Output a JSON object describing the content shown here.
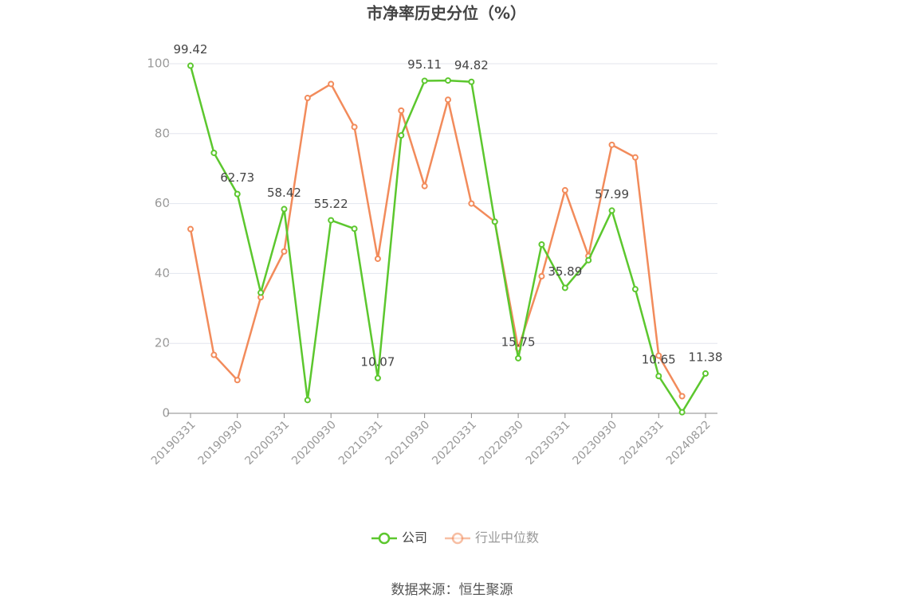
{
  "chart_data": {
    "type": "line",
    "title": "市净率历史分位（%）",
    "categories": [
      "20190331",
      null,
      "20190930",
      null,
      "20200331",
      null,
      "20200930",
      null,
      "20210331",
      null,
      "20210930",
      null,
      "20220331",
      null,
      "20220930",
      null,
      "20230331",
      null,
      "20230930",
      null,
      "20240331",
      null,
      "20240822"
    ],
    "series": [
      {
        "name": "公司",
        "color": "#5cc72e",
        "values": [
          99.42,
          74.5,
          62.73,
          34.5,
          58.42,
          3.8,
          55.22,
          52.8,
          10.07,
          79.5,
          95.11,
          95.2,
          94.82,
          54.8,
          15.75,
          48.3,
          35.89,
          43.8,
          57.99,
          35.5,
          10.65,
          0.3,
          11.38
        ],
        "value_labels": [
          "99.42",
          null,
          "62.73",
          null,
          "58.42",
          null,
          "55.22",
          null,
          "10.07",
          null,
          "95.11",
          null,
          "94.82",
          null,
          "15.75",
          null,
          "35.89",
          null,
          "57.99",
          null,
          "10.65",
          null,
          "11.38"
        ]
      },
      {
        "name": "行业中位数",
        "color": "#f28b5b",
        "values": [
          52.7,
          16.7,
          9.5,
          33.2,
          46.3,
          90.2,
          94.2,
          81.9,
          44.2,
          86.6,
          65.0,
          89.7,
          60.0,
          54.8,
          18.5,
          39.2,
          63.8,
          45.0,
          76.8,
          73.2,
          16.5,
          4.9,
          null
        ]
      }
    ],
    "ylim": [
      0,
      100
    ],
    "yticks": [
      0,
      20,
      40,
      60,
      80,
      100
    ],
    "grid": true,
    "legend": "bottom",
    "source": "数据来源：恒生聚源"
  }
}
